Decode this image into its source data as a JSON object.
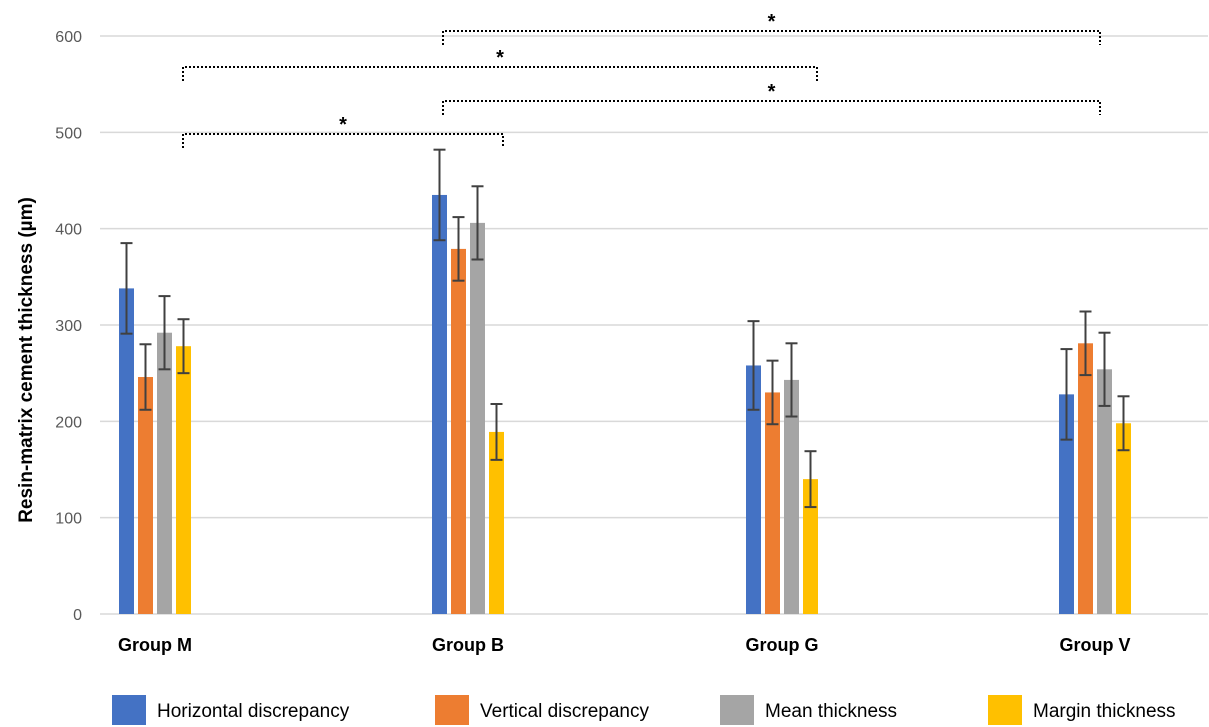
{
  "chart_data": {
    "type": "bar",
    "ylabel": "Resin-matrix cement thickness (µm)",
    "ylim": [
      0,
      600
    ],
    "yticks": [
      0,
      100,
      200,
      300,
      400,
      500,
      600
    ],
    "grid": true,
    "legend_position": "bottom",
    "categories": [
      "Group M",
      "Group B",
      "Group G",
      "Group V"
    ],
    "series": [
      {
        "name": "Horizontal discrepancy",
        "color": "#4472C4",
        "values": [
          338,
          435,
          258,
          228
        ],
        "errors": [
          47,
          47,
          46,
          47
        ]
      },
      {
        "name": "Vertical discrepancy",
        "color": "#ED7D31",
        "values": [
          246,
          379,
          230,
          281
        ],
        "errors": [
          34,
          33,
          33,
          33
        ]
      },
      {
        "name": "Mean thickness",
        "color": "#A5A5A5",
        "values": [
          292,
          406,
          243,
          254
        ],
        "errors": [
          38,
          38,
          38,
          38
        ]
      },
      {
        "name": "Margin thickness",
        "color": "#FFC000",
        "values": [
          278,
          189,
          140,
          198
        ],
        "errors": [
          28,
          29,
          29,
          28
        ]
      }
    ],
    "significance": [
      {
        "from": "Group B",
        "to": "Group V",
        "label": "*",
        "level": 3
      },
      {
        "from": "Group M",
        "to": "Group G",
        "label": "*",
        "level": 2
      },
      {
        "from": "Group B",
        "to": "Group V",
        "label": "*",
        "level": 1
      },
      {
        "from": "Group M",
        "to": "Group B",
        "label": "*",
        "level": 0
      }
    ]
  }
}
